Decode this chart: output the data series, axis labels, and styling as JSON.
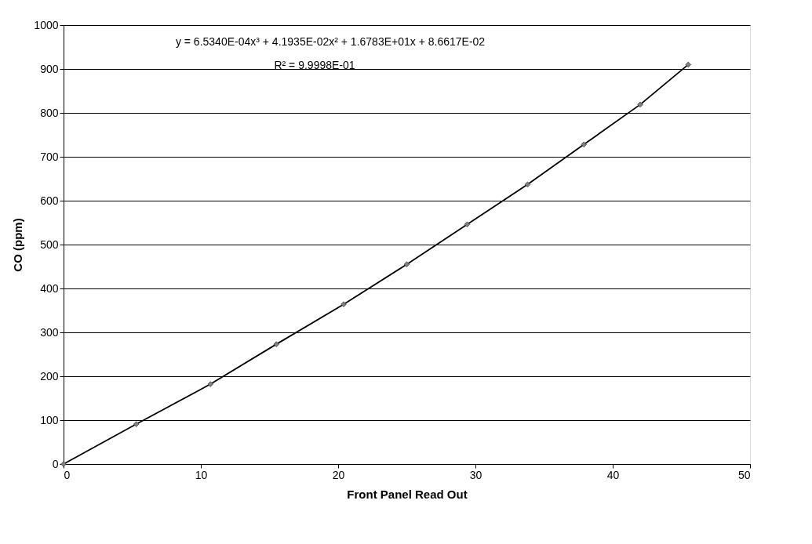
{
  "chart_data": {
    "type": "line",
    "xlabel": "Front Panel Read Out",
    "ylabel": "CO (ppm)",
    "x": [
      0,
      5.3,
      10.7,
      15.5,
      20.4,
      25.0,
      29.4,
      33.8,
      37.9,
      42.0,
      45.5
    ],
    "series": [
      {
        "color": "#000000",
        "values": [
          0,
          91,
          182,
          273,
          364,
          455,
          546,
          637,
          728,
          819,
          910
        ]
      }
    ],
    "marker": "diamond",
    "line_style": "solid",
    "xlim": [
      0,
      50
    ],
    "xticks": [
      0,
      10,
      20,
      30,
      40,
      50
    ],
    "ylim": [
      0,
      1000
    ],
    "yticks": [
      0,
      100,
      200,
      300,
      400,
      500,
      600,
      700,
      800,
      900,
      1000
    ],
    "grid": "y",
    "annotations": [
      "y = 6.5340E-04x³ + 4.1935E-02x² + 1.6783E+01x + 8.6617E-02",
      "R² = 9.9998E-01"
    ]
  }
}
